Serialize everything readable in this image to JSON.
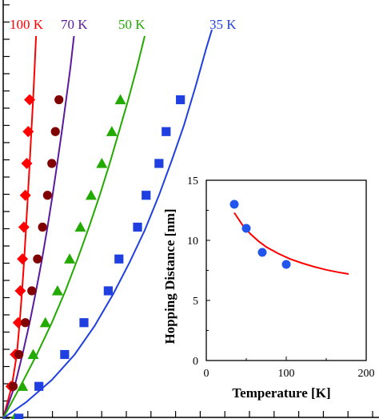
{
  "chart_data": [
    {
      "type": "scatter",
      "title": "",
      "xlabel": "",
      "ylabel": "",
      "x_ticks": [],
      "y_ticks": [],
      "xlim": [
        0,
        16
      ],
      "ylim": [
        0,
        12
      ],
      "series": [
        {
          "name": "100 K",
          "color": "#ff0000",
          "marker": "diamond",
          "points": [
            [
              0.55,
              1.0
            ],
            [
              0.85,
              2.0
            ],
            [
              1.05,
              3.0
            ],
            [
              1.2,
              4.0
            ],
            [
              1.35,
              5.0
            ],
            [
              1.45,
              6.0
            ],
            [
              1.55,
              7.0
            ],
            [
              1.65,
              8.0
            ],
            [
              1.75,
              9.0
            ],
            [
              1.85,
              10.0
            ]
          ],
          "fit": [
            [
              0,
              0
            ],
            [
              0.6,
              1
            ],
            [
              0.95,
              2
            ],
            [
              1.15,
              3
            ],
            [
              1.32,
              4
            ],
            [
              1.47,
              5
            ],
            [
              1.6,
              6
            ],
            [
              1.73,
              7
            ],
            [
              1.85,
              8
            ],
            [
              1.97,
              9
            ],
            [
              2.09,
              10
            ],
            [
              2.2,
              11
            ],
            [
              2.3,
              12
            ]
          ]
        },
        {
          "name": "70 K",
          "color": "#5a1aa0",
          "marker": "circle",
          "marker_color": "#800000",
          "points": [
            [
              0.7,
              1.0
            ],
            [
              1.1,
              2.0
            ],
            [
              1.55,
              3.0
            ],
            [
              2.0,
              4.0
            ],
            [
              2.4,
              5.0
            ],
            [
              2.75,
              6.0
            ],
            [
              3.1,
              7.0
            ],
            [
              3.4,
              8.0
            ],
            [
              3.65,
              9.0
            ],
            [
              3.9,
              10.0
            ]
          ],
          "fit": [
            [
              0,
              0
            ],
            [
              0.8,
              1
            ],
            [
              1.35,
              2
            ],
            [
              1.85,
              3
            ],
            [
              2.3,
              4
            ],
            [
              2.72,
              5
            ],
            [
              3.1,
              6
            ],
            [
              3.45,
              7
            ],
            [
              3.78,
              8
            ],
            [
              4.1,
              9
            ],
            [
              4.4,
              10
            ],
            [
              4.7,
              11
            ],
            [
              4.95,
              12
            ]
          ]
        },
        {
          "name": "50 K",
          "color": "#22aa00",
          "marker": "triangle",
          "points": [
            [
              0.8,
              0
            ],
            [
              1.35,
              1.0
            ],
            [
              2.1,
              2.0
            ],
            [
              2.95,
              3.0
            ],
            [
              3.8,
              4.0
            ],
            [
              4.65,
              5.0
            ],
            [
              5.4,
              6.0
            ],
            [
              6.15,
              7.0
            ],
            [
              6.9,
              8.0
            ],
            [
              7.6,
              9.0
            ],
            [
              8.2,
              10.0
            ]
          ],
          "fit": [
            [
              0,
              0
            ],
            [
              1.2,
              1
            ],
            [
              2.35,
              2
            ],
            [
              3.4,
              3
            ],
            [
              4.35,
              4
            ],
            [
              5.2,
              5
            ],
            [
              6.0,
              6
            ],
            [
              6.75,
              7
            ],
            [
              7.45,
              8
            ],
            [
              8.1,
              9
            ],
            [
              8.75,
              10
            ],
            [
              9.35,
              11
            ],
            [
              9.9,
              12
            ]
          ]
        },
        {
          "name": "35 K",
          "color": "#1f3fe0",
          "marker": "square",
          "points": [
            [
              1.1,
              0
            ],
            [
              2.5,
              1.0
            ],
            [
              4.3,
              2.0
            ],
            [
              5.65,
              3.0
            ],
            [
              7.35,
              4.0
            ],
            [
              8.1,
              5.0
            ],
            [
              9.4,
              6.0
            ],
            [
              10.0,
              7.0
            ],
            [
              10.9,
              8.0
            ],
            [
              11.4,
              9.0
            ],
            [
              12.4,
              10.0
            ]
          ],
          "fit": [
            [
              0,
              0
            ],
            [
              1.6,
              0.5
            ],
            [
              3.4,
              1.2
            ],
            [
              5.0,
              2.0
            ],
            [
              6.4,
              2.9
            ],
            [
              7.7,
              3.9
            ],
            [
              8.85,
              4.9
            ],
            [
              9.9,
              5.9
            ],
            [
              10.9,
              7
            ],
            [
              11.8,
              8.1
            ],
            [
              12.65,
              9.2
            ],
            [
              13.45,
              10.4
            ],
            [
              14.2,
              11.6
            ],
            [
              14.6,
              12.2
            ]
          ]
        }
      ]
    },
    {
      "type": "scatter",
      "title": "",
      "xlabel": "Temperature [K]",
      "ylabel": "Hopping Distance [nm]",
      "x_ticks": [
        "0",
        "100",
        "200"
      ],
      "y_ticks": [
        "0",
        "5",
        "10",
        "15"
      ],
      "xlim": [
        0,
        200
      ],
      "ylim": [
        0,
        15
      ],
      "series": [
        {
          "name": "",
          "color": "#2255ee",
          "marker": "circle",
          "points": [
            [
              35,
              13.0
            ],
            [
              50,
              11.0
            ],
            [
              70,
              9.0
            ],
            [
              100,
              8.0
            ]
          ]
        },
        {
          "name": "",
          "color": "#ff0000",
          "marker": "line",
          "points": [
            [
              35,
              12.3
            ],
            [
              45,
              11.3
            ],
            [
              55,
              10.55
            ],
            [
              65,
              9.95
            ],
            [
              75,
              9.45
            ],
            [
              90,
              8.9
            ],
            [
              105,
              8.45
            ],
            [
              120,
              8.1
            ],
            [
              135,
              7.8
            ],
            [
              150,
              7.55
            ],
            [
              165,
              7.35
            ],
            [
              178,
              7.2
            ]
          ]
        }
      ]
    }
  ],
  "legend_labels": [
    {
      "text": "100 K",
      "color": "#ff0000"
    },
    {
      "text": "70 K",
      "color": "#5a1aa0"
    },
    {
      "text": "50 K",
      "color": "#22aa00"
    },
    {
      "text": "35 K",
      "color": "#1f3fe0"
    }
  ]
}
